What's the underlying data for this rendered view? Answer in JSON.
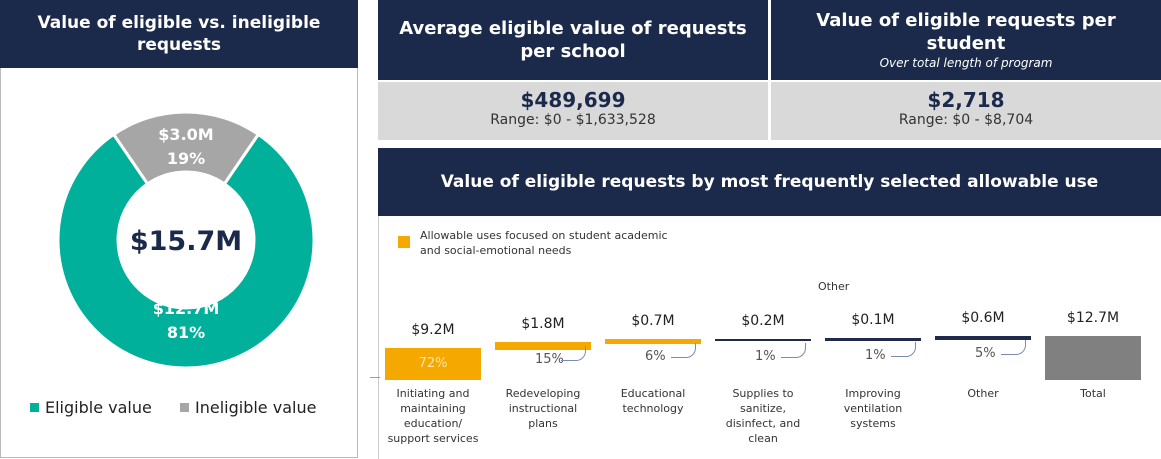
{
  "chart_data": [
    {
      "type": "donut",
      "title": "Value of eligible vs. ineligible requests",
      "categories": [
        "Eligible value",
        "Ineligible value"
      ],
      "values": [
        12.7,
        3.0
      ],
      "value_labels": [
        "$12.7M",
        "$3.0M"
      ],
      "shares": [
        81,
        19
      ],
      "share_labels": [
        "81%",
        "19%"
      ],
      "center_label": "$15.7M",
      "colors": [
        "#00b09b",
        "#a6a6a6"
      ]
    },
    {
      "type": "waterfall",
      "title": "Value of eligible requests by most frequently selected allowable use",
      "legend": "Allowable uses focused on student academic and social-emotional needs",
      "legend_color": "#f5a800",
      "annotation": "Other",
      "categories": [
        "Initiating and maintaining education/ support services",
        "Redeveloping instructional plans",
        "Educational technology",
        "Supplies to sanitize, disinfect, and clean",
        "Improving ventilation systems",
        "Other",
        "Total"
      ],
      "values": [
        9.2,
        1.8,
        0.7,
        0.2,
        0.1,
        0.6,
        12.7
      ],
      "value_labels": [
        "$9.2M",
        "$1.8M",
        "$0.7M",
        "$0.2M",
        "$0.1M",
        "$0.6M",
        "$12.7M"
      ],
      "shares": [
        72,
        15,
        6,
        1,
        1,
        5,
        null
      ],
      "share_labels": [
        "72%",
        "15%",
        "6%",
        "1%",
        "1%",
        "5%",
        null
      ],
      "colors": [
        "#f5a800",
        "#f5a800",
        "#f5a800",
        "#1f2a4d",
        "#1f2a4d",
        "#1f2a4d",
        "#808080"
      ],
      "total_index": 6
    }
  ],
  "kpis": [
    {
      "title": "Average eligible value of requests per school",
      "value": "$489,699",
      "range": "Range: $0 - $1,633,528"
    },
    {
      "title": "Value of eligible requests per student",
      "subtitle": "Over total length of program",
      "value": "$2,718",
      "range": "Range: $0 - $8,704"
    }
  ]
}
